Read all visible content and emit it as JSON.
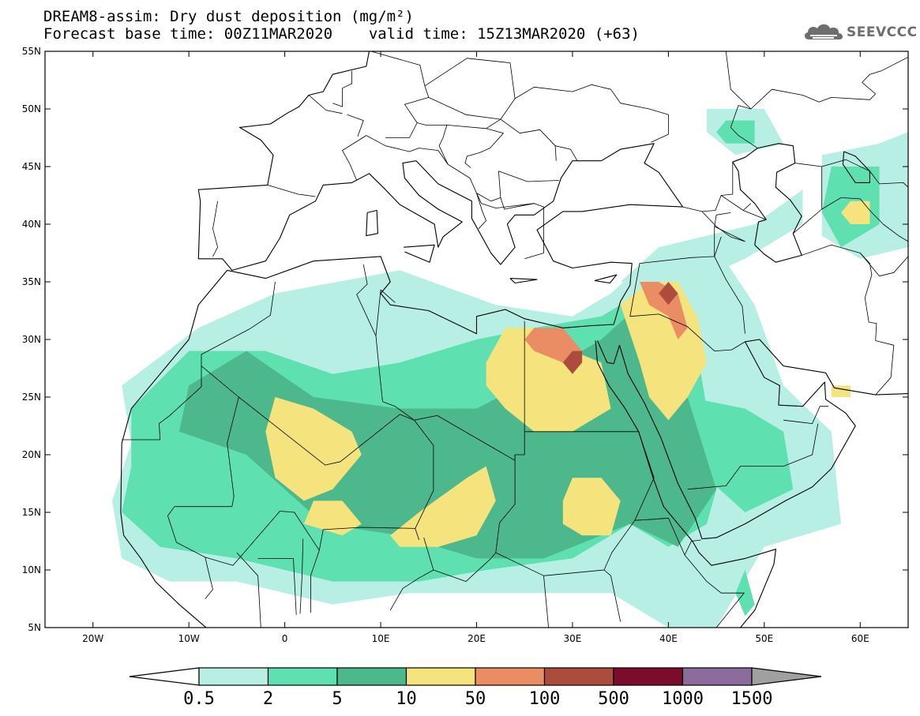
{
  "header": {
    "title_line1": "DREAM8-assim: Dry dust deposition (mg/m²)",
    "title_line2_left": "Forecast base time: 00Z11MAR2020",
    "title_line2_right": "valid time: 15Z13MAR2020 (+63)"
  },
  "logo": {
    "text": "SEEVCCC",
    "icon": "cloud-logo-icon",
    "color": "#6e6e6e"
  },
  "map": {
    "lon_range": [
      -25,
      65
    ],
    "lat_range": [
      5,
      55
    ],
    "lon_ticks": [
      {
        "value": -20,
        "label": "20W"
      },
      {
        "value": -10,
        "label": "10W"
      },
      {
        "value": 0,
        "label": "0"
      },
      {
        "value": 10,
        "label": "10E"
      },
      {
        "value": 20,
        "label": "20E"
      },
      {
        "value": 30,
        "label": "30E"
      },
      {
        "value": 40,
        "label": "40E"
      },
      {
        "value": 50,
        "label": "50E"
      },
      {
        "value": 60,
        "label": "60E"
      }
    ],
    "lat_ticks": [
      {
        "value": 55,
        "label": "55N"
      },
      {
        "value": 50,
        "label": "50N"
      },
      {
        "value": 45,
        "label": "45N"
      },
      {
        "value": 40,
        "label": "40N"
      },
      {
        "value": 35,
        "label": "35N"
      },
      {
        "value": 30,
        "label": "30N"
      },
      {
        "value": 25,
        "label": "25N"
      },
      {
        "value": 20,
        "label": "20N"
      },
      {
        "value": 15,
        "label": "15N"
      },
      {
        "value": 10,
        "label": "10N"
      },
      {
        "value": 5,
        "label": "5N"
      }
    ]
  },
  "legend": {
    "low_color": "#ffffff",
    "high_color": "#a0a0a0",
    "colors": [
      "#b8efe4",
      "#5ee0b0",
      "#4cb88c",
      "#f5e47e",
      "#ea8c64",
      "#ac4c3c",
      "#7c0c2c",
      "#8c6c9c"
    ],
    "labels": [
      "0.5",
      "2",
      "5",
      "10",
      "50",
      "100",
      "500",
      "1000",
      "1500"
    ]
  },
  "chart_data": {
    "type": "heatmap",
    "title": "DREAM8-assim: Dry dust deposition (mg/m²)",
    "subtitle": "Forecast base time: 00Z11MAR2020 valid time: 15Z13MAR2020 (+63)",
    "units": "mg/m²",
    "x_range": [
      -25,
      65
    ],
    "y_range": [
      5,
      55
    ],
    "contour_levels": [
      0.5,
      2,
      5,
      10,
      50,
      100,
      500,
      1000,
      1500
    ],
    "legend_placement": "bottom",
    "regions": [
      {
        "level": 0.5,
        "polygon": [
          [
            -16,
            21
          ],
          [
            -17,
            26
          ],
          [
            -9,
            31
          ],
          [
            -1,
            34
          ],
          [
            12,
            36
          ],
          [
            22,
            33
          ],
          [
            30,
            32
          ],
          [
            34,
            34
          ],
          [
            38,
            37
          ],
          [
            45,
            38
          ],
          [
            49,
            33
          ],
          [
            52,
            26
          ],
          [
            57,
            22
          ],
          [
            58,
            14
          ],
          [
            50,
            12
          ],
          [
            45,
            5
          ],
          [
            40,
            5
          ],
          [
            34,
            8
          ],
          [
            25,
            8
          ],
          [
            13,
            8
          ],
          [
            5,
            7
          ],
          [
            -5,
            9
          ],
          [
            -12,
            9
          ],
          [
            -17,
            11
          ],
          [
            -18,
            16
          ]
        ]
      },
      {
        "level": 0.5,
        "polygon": [
          [
            35,
            35
          ],
          [
            39,
            38
          ],
          [
            49,
            40
          ],
          [
            54,
            43
          ],
          [
            54,
            40
          ],
          [
            48,
            37
          ],
          [
            40,
            34
          ]
        ]
      },
      {
        "level": 0.5,
        "polygon": [
          [
            56,
            39
          ],
          [
            56,
            46
          ],
          [
            62,
            47
          ],
          [
            65,
            48
          ],
          [
            65,
            38
          ],
          [
            60,
            37
          ]
        ]
      },
      {
        "level": 0.5,
        "polygon": [
          [
            44,
            48
          ],
          [
            44,
            50
          ],
          [
            50,
            50
          ],
          [
            52,
            47
          ],
          [
            47,
            46
          ]
        ]
      },
      {
        "level": 2,
        "polygon": [
          [
            -16,
            19
          ],
          [
            -16,
            24
          ],
          [
            -10,
            29
          ],
          [
            -2,
            29
          ],
          [
            5,
            27
          ],
          [
            12,
            28
          ],
          [
            20,
            30
          ],
          [
            26,
            31
          ],
          [
            33,
            32
          ],
          [
            37,
            34
          ],
          [
            41,
            33
          ],
          [
            43,
            29
          ],
          [
            44,
            24
          ],
          [
            46,
            20
          ],
          [
            44,
            14
          ],
          [
            40,
            12
          ],
          [
            36,
            14
          ],
          [
            30,
            11
          ],
          [
            21,
            10
          ],
          [
            14,
            9
          ],
          [
            5,
            9
          ],
          [
            -5,
            11
          ],
          [
            -13,
            12
          ],
          [
            -17,
            15
          ]
        ]
      },
      {
        "level": 2,
        "polygon": [
          [
            42,
            25
          ],
          [
            48,
            24
          ],
          [
            52,
            22
          ],
          [
            53,
            17
          ],
          [
            48,
            15
          ],
          [
            44,
            18
          ]
        ]
      },
      {
        "level": 2,
        "polygon": [
          [
            56,
            41
          ],
          [
            57,
            45
          ],
          [
            62,
            45
          ],
          [
            62,
            40
          ],
          [
            58,
            38
          ]
        ]
      },
      {
        "level": 2,
        "polygon": [
          [
            45,
            48
          ],
          [
            46,
            49
          ],
          [
            49,
            49
          ],
          [
            49,
            47
          ],
          [
            46,
            47
          ]
        ]
      },
      {
        "level": 2,
        "polygon": [
          [
            47,
            8
          ],
          [
            48,
            10
          ],
          [
            49,
            7
          ],
          [
            48,
            6
          ]
        ]
      },
      {
        "level": 5,
        "polygon": [
          [
            -10,
            26
          ],
          [
            -11,
            22
          ],
          [
            -4,
            20
          ],
          [
            4,
            14
          ],
          [
            12,
            13
          ],
          [
            20,
            11
          ],
          [
            27,
            11
          ],
          [
            33,
            13
          ],
          [
            36,
            14
          ],
          [
            41,
            12
          ],
          [
            45,
            17
          ],
          [
            42,
            25
          ],
          [
            41,
            30
          ],
          [
            37,
            33
          ],
          [
            33,
            30
          ],
          [
            27,
            27
          ],
          [
            20,
            24
          ],
          [
            12,
            24
          ],
          [
            3,
            25
          ],
          [
            -4,
            29
          ]
        ]
      },
      {
        "level": 10,
        "polygon": [
          [
            -2,
            22
          ],
          [
            -1,
            25
          ],
          [
            3,
            24
          ],
          [
            7,
            22
          ],
          [
            8,
            20
          ],
          [
            5,
            17
          ],
          [
            2,
            16
          ],
          [
            -1,
            18
          ]
        ]
      },
      {
        "level": 10,
        "polygon": [
          [
            2,
            14
          ],
          [
            3,
            16
          ],
          [
            6,
            16
          ],
          [
            8,
            14
          ],
          [
            6,
            13
          ]
        ]
      },
      {
        "level": 10,
        "polygon": [
          [
            11,
            13
          ],
          [
            14,
            15
          ],
          [
            19,
            18
          ],
          [
            21,
            19
          ],
          [
            22,
            16
          ],
          [
            20,
            13
          ],
          [
            16,
            12
          ],
          [
            12,
            12
          ]
        ]
      },
      {
        "level": 10,
        "polygon": [
          [
            21,
            28
          ],
          [
            23,
            31
          ],
          [
            27,
            31
          ],
          [
            30,
            29
          ],
          [
            33,
            28
          ],
          [
            34,
            24
          ],
          [
            30,
            22
          ],
          [
            26,
            22
          ],
          [
            23,
            24
          ],
          [
            21,
            26
          ]
        ]
      },
      {
        "level": 10,
        "polygon": [
          [
            29,
            16
          ],
          [
            30,
            18
          ],
          [
            33,
            18
          ],
          [
            35,
            16
          ],
          [
            34,
            13
          ],
          [
            31,
            13
          ],
          [
            29,
            14
          ]
        ]
      },
      {
        "level": 10,
        "polygon": [
          [
            35,
            33
          ],
          [
            38,
            35
          ],
          [
            41,
            35
          ],
          [
            43,
            32
          ],
          [
            44,
            28
          ],
          [
            42,
            25
          ],
          [
            40,
            23
          ],
          [
            38,
            25
          ],
          [
            37,
            28
          ]
        ]
      },
      {
        "level": 10,
        "polygon": [
          [
            58,
            41
          ],
          [
            59,
            42
          ],
          [
            61,
            42
          ],
          [
            61,
            40
          ],
          [
            59,
            40
          ]
        ]
      },
      {
        "level": 10,
        "polygon": [
          [
            57,
            26
          ],
          [
            59,
            26
          ],
          [
            59,
            25
          ],
          [
            57,
            25
          ]
        ]
      },
      {
        "level": 50,
        "polygon": [
          [
            25,
            30
          ],
          [
            26,
            31
          ],
          [
            29,
            31
          ],
          [
            31,
            29
          ],
          [
            31,
            28
          ],
          [
            29,
            28
          ],
          [
            26,
            29
          ]
        ]
      },
      {
        "level": 50,
        "polygon": [
          [
            37,
            35
          ],
          [
            39,
            35
          ],
          [
            41,
            34
          ],
          [
            42,
            31
          ],
          [
            41,
            30
          ],
          [
            40,
            32
          ],
          [
            38,
            33
          ]
        ]
      },
      {
        "level": 100,
        "polygon": [
          [
            29,
            28
          ],
          [
            30,
            29
          ],
          [
            31,
            29
          ],
          [
            31,
            28
          ],
          [
            30,
            27
          ]
        ]
      },
      {
        "level": 100,
        "polygon": [
          [
            39,
            34
          ],
          [
            40,
            35
          ],
          [
            41,
            34
          ],
          [
            40,
            33
          ]
        ]
      }
    ]
  }
}
